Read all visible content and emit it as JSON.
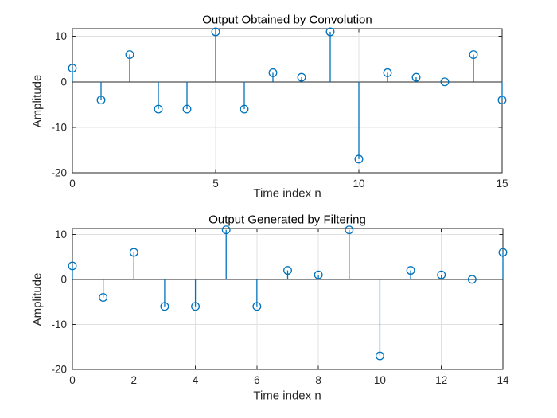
{
  "figure": {
    "background": "#ffffff"
  },
  "palette": {
    "stem_color": "#0072BD",
    "axis_color": "#262626",
    "grid_color": "#E0E0E0",
    "title_color": "#000000",
    "tick_label_color": "#262626"
  },
  "chart_data": [
    {
      "type": "stem",
      "title": "Output Obtained by Convolution",
      "xlabel": "Time index n",
      "ylabel": "Amplitude",
      "x": [
        0,
        1,
        2,
        3,
        4,
        5,
        6,
        7,
        8,
        9,
        10,
        11,
        12,
        13,
        14,
        15
      ],
      "values": [
        3,
        -4,
        6,
        -6,
        -6,
        11,
        -6,
        2,
        1,
        11,
        -17,
        2,
        1,
        0,
        6,
        -4
      ],
      "xlim": [
        0,
        15
      ],
      "ylim": [
        -20,
        11.7
      ],
      "xticks": [
        0,
        5,
        10,
        15
      ],
      "yticks": [
        10,
        0,
        -10,
        -20
      ],
      "grid": true,
      "legend": "none",
      "baseline": 0
    },
    {
      "type": "stem",
      "title": "Output Generated by Filtering",
      "xlabel": "Time index n",
      "ylabel": "Amplitude",
      "x": [
        0,
        1,
        2,
        3,
        4,
        5,
        6,
        7,
        8,
        9,
        10,
        11,
        12,
        13,
        14
      ],
      "values": [
        3,
        -4,
        6,
        -6,
        -6,
        11,
        -6,
        2,
        1,
        11,
        -17,
        2,
        1,
        0,
        6
      ],
      "xlim": [
        0,
        14
      ],
      "ylim": [
        -20,
        11.3
      ],
      "xticks": [
        0,
        2,
        4,
        6,
        8,
        10,
        12,
        14
      ],
      "yticks": [
        10,
        0,
        -10,
        -20
      ],
      "grid": true,
      "legend": "none",
      "baseline": 0
    }
  ]
}
